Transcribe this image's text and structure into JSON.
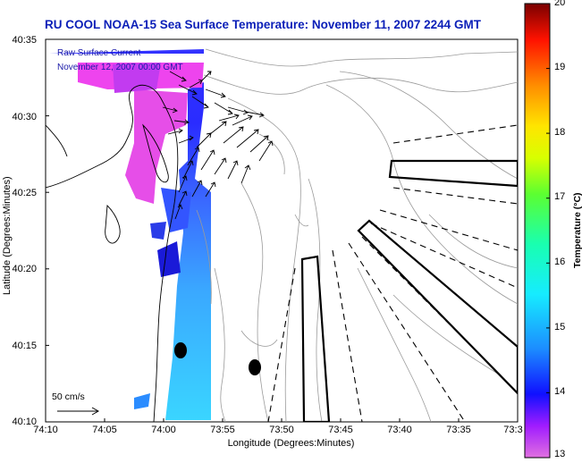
{
  "title": "RU COOL  NOAA-15  Sea Surface Temperature:  November 11, 2007 2244 GMT",
  "legend": {
    "line1": "Raw Surface Current",
    "line2": "November 12, 2007 00:00 GMT"
  },
  "scale_label": "50 cm/s",
  "axes": {
    "ylabel": "Latitude (Degrees:Minutes)",
    "xlabel": "Longitude (Degrees:Minutes)",
    "yticks": [
      "40:35",
      "40:30",
      "40:25",
      "40:20",
      "40:15",
      "40:10"
    ],
    "xticks": [
      "74:10",
      "74:05",
      "74:00",
      "73:55",
      "73:50",
      "73:45",
      "73:40",
      "73:35",
      "73:3"
    ]
  },
  "colorbar": {
    "label": "Temperature (°C)",
    "ticks": [
      "20",
      "19",
      "18",
      "17",
      "16",
      "15",
      "14",
      "13"
    ],
    "min": 13,
    "max": 20
  },
  "colors": {
    "title": "#0b1fb8",
    "legend_text": "#1a1aa8"
  }
}
